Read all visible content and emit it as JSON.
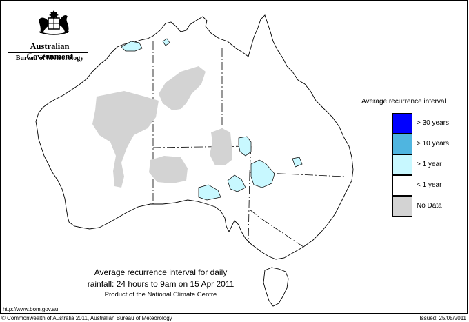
{
  "header": {
    "government": "Australian Government",
    "bureau": "Bureau of Meteorology"
  },
  "map": {
    "region": "Australia",
    "icon": "australia-map-icon"
  },
  "legend": {
    "title": "Average recurrence interval",
    "items": [
      {
        "label": "> 30 years",
        "color": "#0000ff"
      },
      {
        "label": "> 10 years",
        "color": "#4fb5e0"
      },
      {
        "label": "> 1 year",
        "color": "#c8f8ff"
      },
      {
        "label": "< 1 year",
        "color": "#ffffff"
      },
      {
        "label": "No Data",
        "color": "#d3d3d3"
      }
    ]
  },
  "caption": {
    "line1": "Average recurrence interval for daily",
    "line2": "rainfall: 24 hours to 9am on 15 Apr 2011",
    "line3": "Product of the National Climate Centre"
  },
  "footer": {
    "url": "http://www.bom.gov.au",
    "copyright": "© Commonwealth of Australia 2011, Australian Bureau of Meteorology",
    "issued": "Issued: 25/05/2011"
  },
  "colors": {
    "no_data": "#d3d3d3",
    "over_1_year": "#c8f8ff",
    "outline": "#000000"
  }
}
